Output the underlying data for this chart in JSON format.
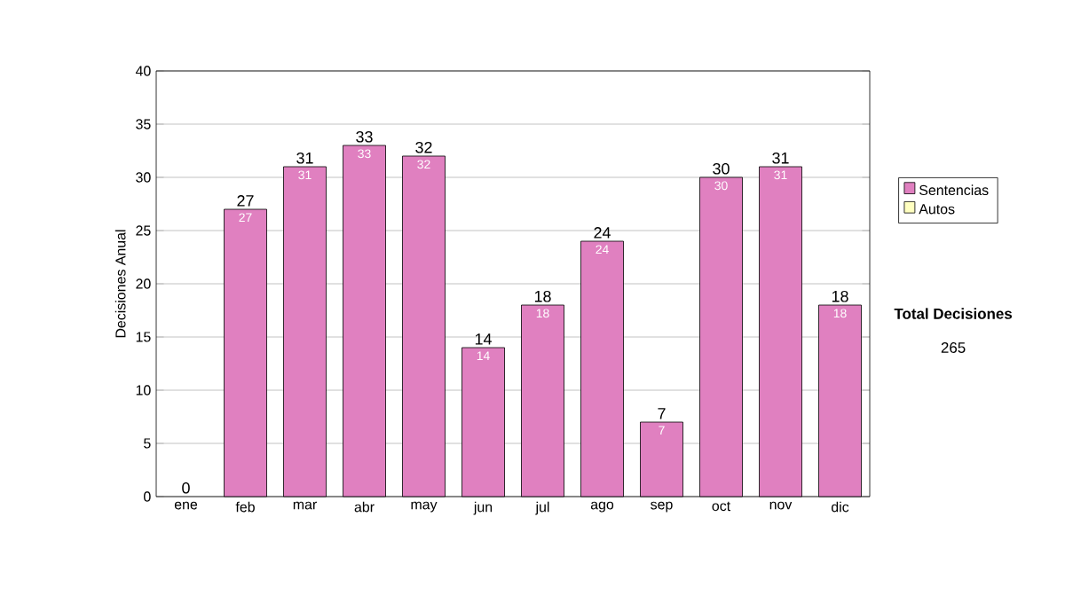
{
  "chart_data": {
    "type": "bar",
    "stacked": true,
    "ylabel": "Decisiones Anual",
    "categories": [
      "ene",
      "feb",
      "mar",
      "abr",
      "may",
      "jun",
      "jul",
      "ago",
      "sep",
      "oct",
      "nov",
      "dic"
    ],
    "series": [
      {
        "name": "Sentencias",
        "color": "#e080c0",
        "values": [
          0,
          27,
          31,
          33,
          32,
          14,
          18,
          24,
          7,
          30,
          31,
          18
        ],
        "value_labels": [
          null,
          "27",
          "31",
          "33",
          "32",
          "14",
          "18",
          "24",
          "7",
          "30",
          "31",
          "18"
        ]
      },
      {
        "name": "Autos",
        "color": "#ffffc0",
        "values": [
          0,
          0,
          0,
          0,
          0,
          0,
          0,
          0,
          0,
          0,
          0,
          0
        ]
      }
    ],
    "totals": [
      "0",
      "27",
      "31",
      "33",
      "32",
      "14",
      "18",
      "24",
      "7",
      "30",
      "31",
      "18"
    ],
    "ylim": [
      0,
      40
    ],
    "yticks": [
      0,
      5,
      10,
      15,
      20,
      25,
      30,
      35,
      40
    ],
    "grid": "y",
    "legend": "right",
    "annotations": [
      "Total Decisiones",
      "265"
    ]
  }
}
